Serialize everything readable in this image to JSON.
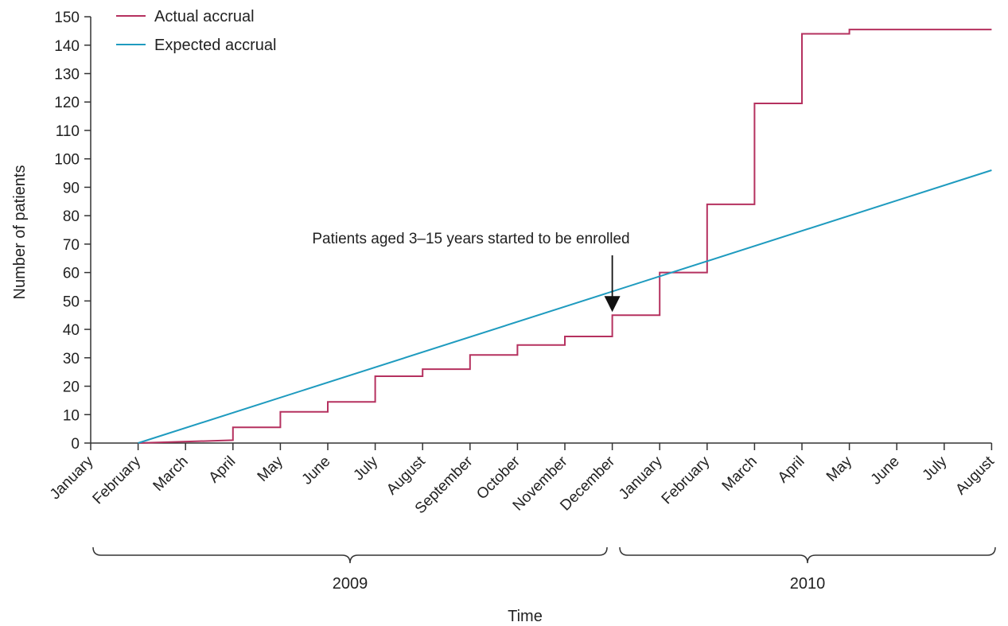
{
  "chart_data": {
    "type": "line",
    "title": "",
    "xlabel": "Time",
    "ylabel": "Number of patients",
    "ylim": [
      0,
      150
    ],
    "yticks": [
      0,
      10,
      20,
      30,
      40,
      50,
      60,
      70,
      80,
      90,
      100,
      110,
      120,
      130,
      140,
      150
    ],
    "xtick_labels": [
      "January",
      "February",
      "March",
      "April",
      "May",
      "June",
      "July",
      "August",
      "September",
      "October",
      "November",
      "December",
      "January",
      "February",
      "March",
      "April",
      "May",
      "June",
      "July",
      "August"
    ],
    "year_groups": [
      {
        "label": "2009",
        "from": "January",
        "to": "December"
      },
      {
        "label": "2010",
        "from": "January",
        "to": "August"
      }
    ],
    "legend_position": "top-left",
    "grid": false,
    "series": [
      {
        "name": "Actual accrual",
        "color": "#b5315f",
        "step": true,
        "points": [
          [
            "2009-02",
            0
          ],
          [
            "2009-04",
            1
          ],
          [
            "2009-04",
            5.5
          ],
          [
            "2009-05",
            5.5
          ],
          [
            "2009-05",
            11
          ],
          [
            "2009-06",
            11
          ],
          [
            "2009-06",
            14.5
          ],
          [
            "2009-07",
            14.5
          ],
          [
            "2009-07",
            23.5
          ],
          [
            "2009-08",
            23.5
          ],
          [
            "2009-08",
            26
          ],
          [
            "2009-09",
            26
          ],
          [
            "2009-09",
            31
          ],
          [
            "2009-10",
            31
          ],
          [
            "2009-10",
            34.5
          ],
          [
            "2009-11",
            34.5
          ],
          [
            "2009-11",
            37.5
          ],
          [
            "2009-12",
            37.5
          ],
          [
            "2009-12",
            45
          ],
          [
            "2010-01",
            45
          ],
          [
            "2010-01",
            60
          ],
          [
            "2010-02",
            60
          ],
          [
            "2010-02",
            84
          ],
          [
            "2010-03",
            84
          ],
          [
            "2010-03",
            119.5
          ],
          [
            "2010-04",
            119.5
          ],
          [
            "2010-04",
            144
          ],
          [
            "2010-05",
            144
          ],
          [
            "2010-05",
            145.5
          ],
          [
            "2010-08",
            145.5
          ]
        ]
      },
      {
        "name": "Expected accrual",
        "color": "#1f9bbf",
        "step": false,
        "points": [
          [
            "2009-02",
            0
          ],
          [
            "2010-08",
            96
          ]
        ]
      }
    ],
    "annotation": {
      "text": "Patients aged 3–15 years started to be enrolled",
      "x": "2009-12",
      "y": 45
    }
  }
}
